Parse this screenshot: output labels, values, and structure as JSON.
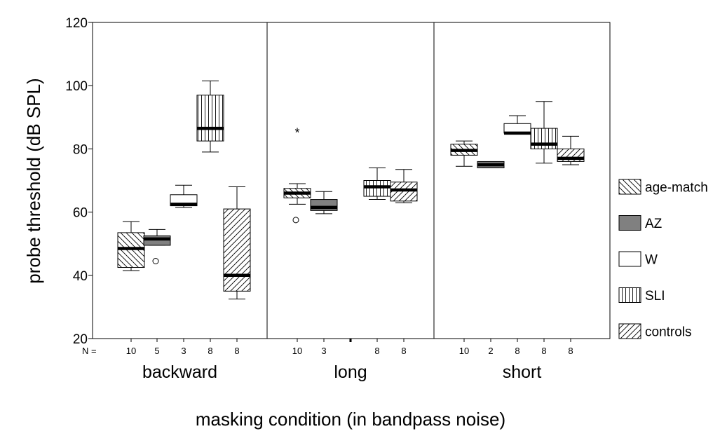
{
  "chart_data": {
    "type": "boxplot",
    "ylabel": "probe threshold (dB SPL)",
    "xlabel": "masking condition (in bandpass noise)",
    "ylim": [
      20,
      120
    ],
    "yticks": [
      20,
      40,
      60,
      80,
      100,
      120
    ],
    "n_prefix": "N =",
    "groups": [
      "backward",
      "long",
      "short"
    ],
    "legend_position": "right",
    "series": [
      {
        "name": "age-match",
        "pattern": "diag-down"
      },
      {
        "name": "AZ",
        "pattern": "solid-gray",
        "color": "#808080"
      },
      {
        "name": "W",
        "pattern": "none"
      },
      {
        "name": "SLI",
        "pattern": "vertical"
      },
      {
        "name": "controls",
        "pattern": "diag-up"
      }
    ],
    "boxes": [
      {
        "group": "backward",
        "series": "age-match",
        "n": "10",
        "whisker_low": 41.5,
        "q1": 42.5,
        "median": 48.5,
        "q3": 53.5,
        "whisker_high": 57,
        "outliers": []
      },
      {
        "group": "backward",
        "series": "AZ",
        "n": "5",
        "whisker_low": 49.5,
        "q1": 49.5,
        "median": 51.5,
        "q3": 52.5,
        "whisker_high": 54.5,
        "outliers": [
          {
            "value": 44.5,
            "marker": "o"
          }
        ]
      },
      {
        "group": "backward",
        "series": "W",
        "n": "3",
        "whisker_low": 61.5,
        "q1": 62,
        "median": 62.5,
        "q3": 65.5,
        "whisker_high": 68.5,
        "outliers": []
      },
      {
        "group": "backward",
        "series": "SLI",
        "n": "8",
        "whisker_low": 79,
        "q1": 82.5,
        "median": 86.5,
        "q3": 97,
        "whisker_high": 101.5,
        "outliers": []
      },
      {
        "group": "backward",
        "series": "controls",
        "n": "8",
        "whisker_low": 32.5,
        "q1": 35,
        "median": 40,
        "q3": 61,
        "whisker_high": 68,
        "outliers": []
      },
      {
        "group": "long",
        "series": "age-match",
        "n": "10",
        "whisker_low": 62.5,
        "q1": 64.5,
        "median": 66,
        "q3": 67.5,
        "whisker_high": 69,
        "outliers": [
          {
            "value": 57.5,
            "marker": "o"
          },
          {
            "value": 85.5,
            "marker": "*"
          }
        ]
      },
      {
        "group": "long",
        "series": "AZ",
        "n": "3",
        "whisker_low": 59.5,
        "q1": 60.5,
        "median": 61.5,
        "q3": 64,
        "whisker_high": 66.5,
        "outliers": []
      },
      {
        "group": "long",
        "series": "W",
        "n": "",
        "tick": true
      },
      {
        "group": "long",
        "series": "SLI",
        "n": "8",
        "whisker_low": 64,
        "q1": 65,
        "median": 68,
        "q3": 70,
        "whisker_high": 74,
        "outliers": []
      },
      {
        "group": "long",
        "series": "controls",
        "n": "8",
        "whisker_low": 63,
        "q1": 63.5,
        "median": 67,
        "q3": 69.5,
        "whisker_high": 73.5,
        "outliers": []
      },
      {
        "group": "short",
        "series": "age-match",
        "n": "10",
        "whisker_low": 74.5,
        "q1": 78,
        "median": 79.5,
        "q3": 81.5,
        "whisker_high": 82.5,
        "outliers": []
      },
      {
        "group": "short",
        "series": "AZ",
        "n": "2",
        "whisker_low": 74,
        "q1": 74,
        "median": 75,
        "q3": 76,
        "whisker_high": 76,
        "outliers": []
      },
      {
        "group": "short",
        "series": "W",
        "n": "8",
        "whisker_low": 85,
        "q1": 85,
        "median": 85,
        "q3": 88,
        "whisker_high": 90.5,
        "outliers": []
      },
      {
        "group": "short",
        "series": "SLI",
        "n": "8",
        "whisker_low": 75.5,
        "q1": 80,
        "median": 81.5,
        "q3": 86.5,
        "whisker_high": 95,
        "outliers": []
      },
      {
        "group": "short",
        "series": "controls",
        "n": "8",
        "whisker_low": 75,
        "q1": 76,
        "median": 77,
        "q3": 80,
        "whisker_high": 84,
        "outliers": []
      }
    ]
  }
}
